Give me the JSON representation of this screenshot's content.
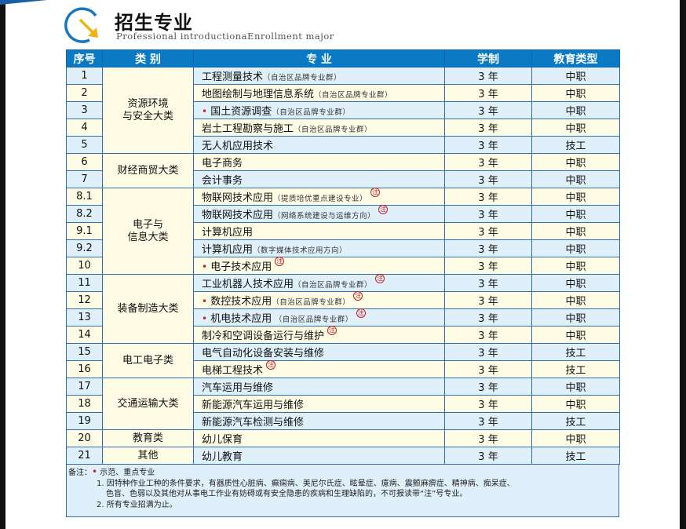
{
  "header": {
    "title": "招生专业",
    "subtitle": "Professional introductionaEnrollment major"
  },
  "colors": {
    "header_bg": "#0a7ac4",
    "row_blue": "#dff0fb",
    "row_yellow": "#fffce6",
    "marker_red": "#d01c1c"
  },
  "table": {
    "columns": [
      "序号",
      "类 别",
      "专 业",
      "学制",
      "教育类型"
    ],
    "rows": [
      {
        "no": "1",
        "category": "资源环境\n与安全大类",
        "span": 5,
        "major": "工程测量技术",
        "note": "（自治区品牌专业群）",
        "dot": false,
        "zhu": false,
        "years": "3 年",
        "type": "中职"
      },
      {
        "no": "2",
        "major": "地图绘制与地理信息系统",
        "note": "（自治区品牌专业群）",
        "dot": false,
        "zhu": false,
        "years": "3 年",
        "type": "中职"
      },
      {
        "no": "3",
        "major": "国土资源调查",
        "note": "（自治区品牌专业群）",
        "dot": true,
        "zhu": false,
        "years": "3 年",
        "type": "中职"
      },
      {
        "no": "4",
        "major": "岩土工程勘察与施工",
        "note": "（自治区品牌专业群）",
        "dot": false,
        "zhu": false,
        "years": "3 年",
        "type": "中职"
      },
      {
        "no": "5",
        "major": "无人机应用技术",
        "note": "",
        "dot": false,
        "zhu": false,
        "years": "3 年",
        "type": "技工"
      },
      {
        "no": "6",
        "category": "财经商贸大类",
        "span": 2,
        "major": "电子商务",
        "note": "",
        "dot": false,
        "zhu": false,
        "years": "3 年",
        "type": "中职"
      },
      {
        "no": "7",
        "major": "会计事务",
        "note": "",
        "dot": false,
        "zhu": false,
        "years": "3 年",
        "type": "中职"
      },
      {
        "no": "8.1",
        "category": "电子与\n信息大类",
        "span": 5,
        "major": "物联网技术应用",
        "note": "（提质培优重点建设专业）",
        "dot": false,
        "zhu": true,
        "years": "3 年",
        "type": "中职"
      },
      {
        "no": "8.2",
        "major": "物联网技术应用",
        "note": "（网络系统建设与运维方向）",
        "dot": false,
        "zhu": true,
        "years": "3 年",
        "type": "中职"
      },
      {
        "no": "9.1",
        "major": "计算机应用",
        "note": "",
        "dot": false,
        "zhu": false,
        "years": "3 年",
        "type": "中职"
      },
      {
        "no": "9.2",
        "major": "计算机应用",
        "note": "（数字媒体技术应用方向）",
        "dot": false,
        "zhu": false,
        "years": "3 年",
        "type": "中职"
      },
      {
        "no": "10",
        "major": "电子技术应用",
        "note": "",
        "dot": true,
        "zhu": true,
        "years": "3 年",
        "type": "中职"
      },
      {
        "no": "11",
        "category": "装备制造大类",
        "span": 4,
        "major": "工业机器人技术应用",
        "note": "（自治区品牌专业群）",
        "dot": false,
        "zhu": true,
        "years": "3 年",
        "type": "中职"
      },
      {
        "no": "12",
        "major": "数控技术应用",
        "note": "（自治区品牌专业群）",
        "dot": true,
        "zhu": true,
        "years": "3 年",
        "type": "中职"
      },
      {
        "no": "13",
        "major": "机电技术应用",
        "note": " （自治区品牌专业群）",
        "dot": true,
        "zhu": true,
        "years": "3 年",
        "type": "中职"
      },
      {
        "no": "14",
        "major": "制冷和空调设备运行与维护",
        "note": "",
        "dot": false,
        "zhu": true,
        "years": "3 年",
        "type": "中职"
      },
      {
        "no": "15",
        "category": "电工电子类",
        "span": 2,
        "major": "电气自动化设备安装与维修",
        "note": "",
        "dot": false,
        "zhu": false,
        "years": "3 年",
        "type": "技工"
      },
      {
        "no": "16",
        "major": "电梯工程技术",
        "note": "",
        "dot": false,
        "zhu": true,
        "years": "3 年",
        "type": "技工"
      },
      {
        "no": "17",
        "category": "交通运输大类",
        "span": 3,
        "major": "汽车运用与维修",
        "note": "",
        "dot": false,
        "zhu": false,
        "years": "3 年",
        "type": "中职"
      },
      {
        "no": "18",
        "major": "新能源汽车运用与维修",
        "note": "",
        "dot": false,
        "zhu": false,
        "years": "3 年",
        "type": "中职"
      },
      {
        "no": "19",
        "major": "新能源汽车检测与维修",
        "note": "",
        "dot": false,
        "zhu": false,
        "years": "3 年",
        "type": "技工"
      },
      {
        "no": "20",
        "category": "教育类",
        "span": 1,
        "major": "幼儿保育",
        "note": "",
        "dot": false,
        "zhu": false,
        "years": "3 年",
        "type": "中职"
      },
      {
        "no": "21",
        "category": "其他",
        "span": 1,
        "major": "幼儿教育",
        "note": "",
        "dot": false,
        "zhu": false,
        "years": "3 年",
        "type": "技工"
      }
    ],
    "zhu_mark": "注",
    "dot_mark": "•"
  },
  "remarks": {
    "label": "备注：",
    "legend": "示范、重点专业",
    "item1a": "1. 因特种作业工种的条件要求，有器质性心脏病、癫痫病、美尼尔氏症、眩晕症、癔病、震颤麻痹症、精神病、痴呆症、",
    "item1b": "色盲、色弱以及其他对从事电工作业有妨碍或有安全隐患的疾病和生理缺陷的，不可报读带“注”号专业。",
    "item2": "2. 所有专业招满为止。"
  }
}
